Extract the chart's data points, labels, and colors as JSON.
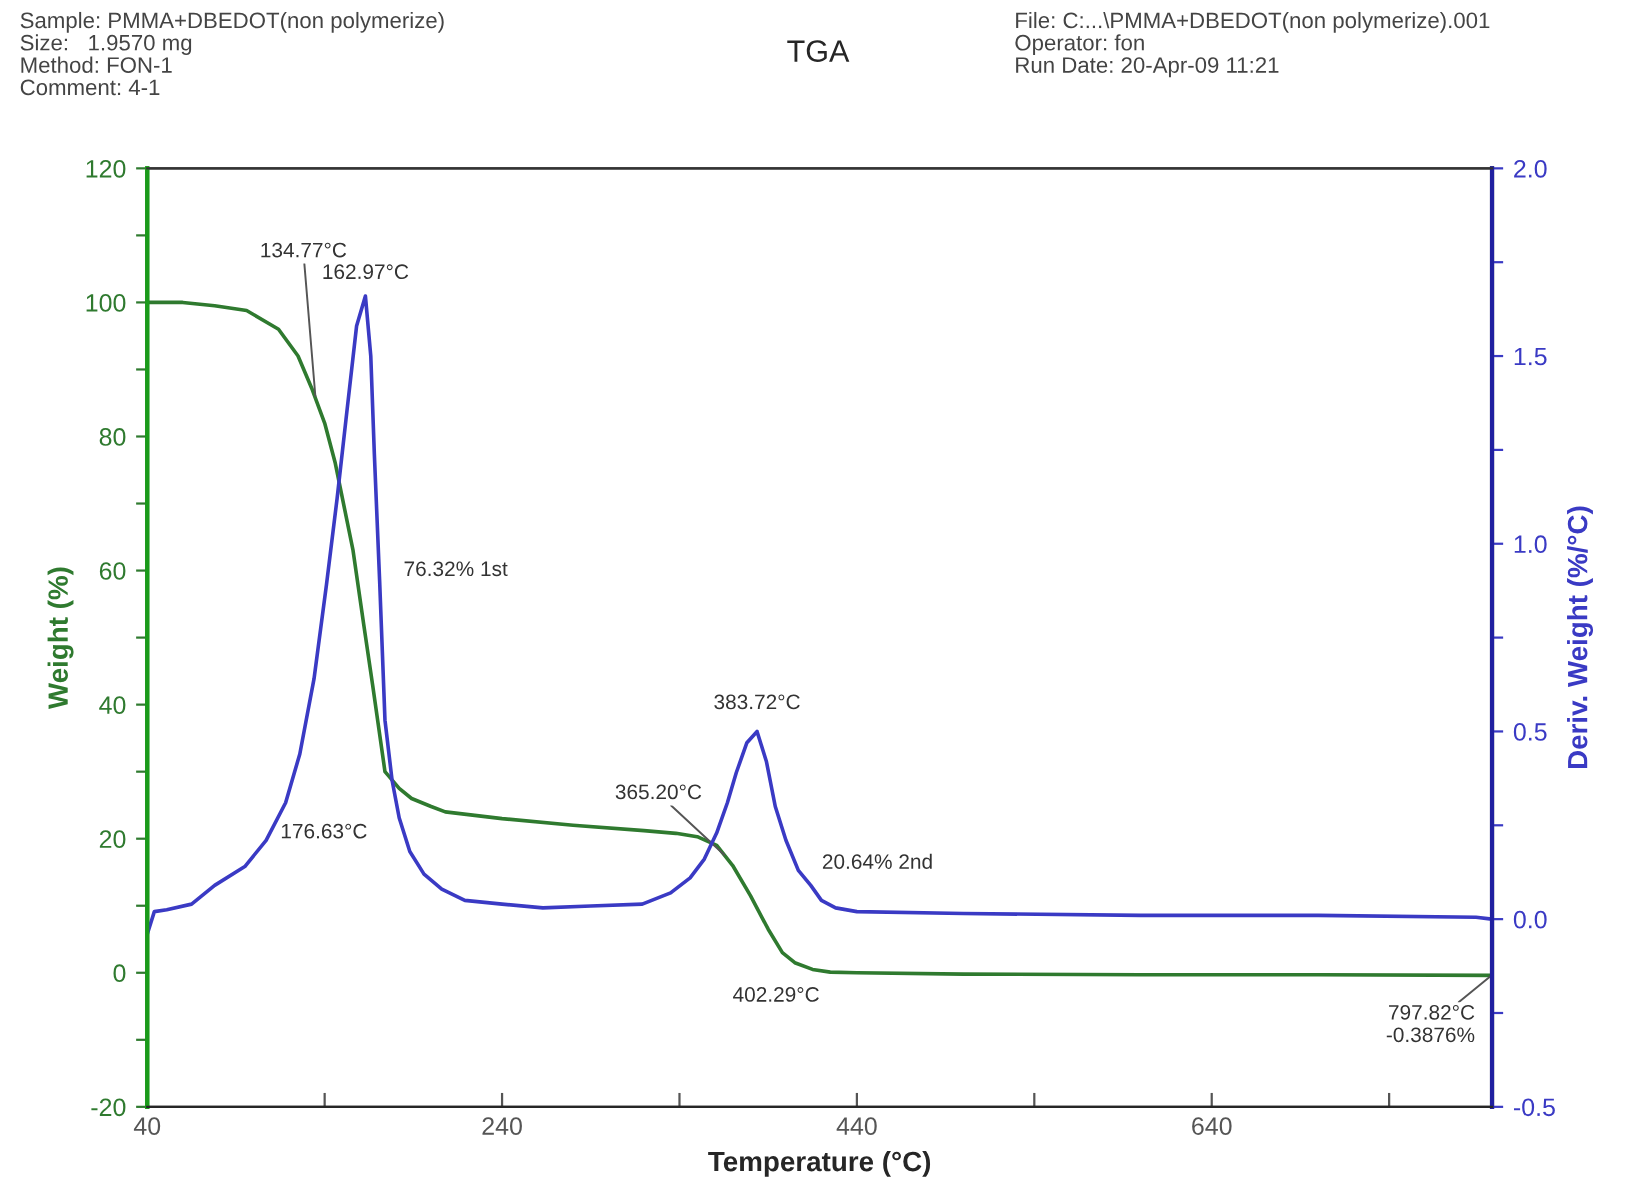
{
  "chart_data": {
    "type": "line",
    "title": "TGA",
    "xlabel": "Temperature (°C)",
    "ylabel": "Weight (%)",
    "y2label": "Deriv. Weight (%/°C)",
    "xlim": [
      40,
      798
    ],
    "xticks": [
      40,
      {
        "value": 140,
        "label": null
      },
      240,
      {
        "value": 340,
        "label": null
      },
      440,
      {
        "value": 540,
        "label": null
      },
      640,
      {
        "value": 740,
        "label": null
      }
    ],
    "ylim": [
      -20,
      120
    ],
    "yticks": [
      -20,
      {
        "value": -10,
        "label": null
      },
      0,
      {
        "value": 10,
        "label": null
      },
      20,
      {
        "value": 30,
        "label": null
      },
      40,
      {
        "value": 50,
        "label": null
      },
      60,
      {
        "value": 70,
        "label": null
      },
      80,
      {
        "value": 90,
        "label": null
      },
      100,
      {
        "value": 110,
        "label": null
      },
      120
    ],
    "y2lim": [
      -0.5,
      2.0
    ],
    "y2ticks": [
      -0.5,
      {
        "value": -0.25,
        "label": null
      },
      {
        "value": 0,
        "label": "0.0"
      },
      {
        "value": 0.25,
        "label": null
      },
      0.5,
      {
        "value": 0.75,
        "label": null
      },
      {
        "value": 1,
        "label": "1.0"
      },
      {
        "value": 1.25,
        "label": null
      },
      1.5,
      {
        "value": 1.75,
        "label": null
      },
      {
        "value": 2,
        "label": "2.0"
      }
    ],
    "grid": false,
    "legend": false,
    "series": [
      {
        "color": "#2f7a2f",
        "x": [
          40,
          60,
          78,
          96,
          114,
          125,
          133,
          140,
          146,
          156,
          162,
          167,
          174,
          182,
          189,
          200,
          208,
          240,
          280,
          320,
          338,
          350,
          361,
          370,
          380,
          390,
          398,
          405,
          415,
          425,
          440,
          500,
          600,
          700,
          797.82
        ],
        "values": [
          100,
          100,
          99.5,
          98.8,
          96,
          92,
          87,
          82,
          76,
          63,
          52,
          43,
          30,
          27.5,
          26,
          24.8,
          24,
          23,
          22,
          21.2,
          20.8,
          20.3,
          19,
          16,
          11.5,
          6.5,
          3,
          1.5,
          0.5,
          0.1,
          0,
          -0.2,
          -0.3,
          -0.3,
          -0.3876
        ]
      },
      {
        "color": "#3a3ac4",
        "axis": "y2",
        "x": [
          40,
          44,
          51,
          65,
          78,
          95,
          107,
          118,
          126,
          134,
          141,
          147,
          152,
          158,
          162.97,
          166,
          168,
          171,
          174,
          178,
          182,
          188,
          196,
          206,
          219,
          240,
          263,
          290,
          319,
          335,
          346,
          354,
          361,
          367,
          372,
          378,
          383.72,
          389,
          394,
          400,
          407,
          414,
          420,
          428,
          440,
          500,
          600,
          700,
          789,
          797.82
        ],
        "values": [
          -0.04,
          0.02,
          0.025,
          0.04,
          0.09,
          0.14,
          0.21,
          0.31,
          0.44,
          0.64,
          0.89,
          1.12,
          1.33,
          1.58,
          1.66,
          1.5,
          1.24,
          0.9,
          0.53,
          0.37,
          0.27,
          0.18,
          0.12,
          0.08,
          0.05,
          0.04,
          0.03,
          0.035,
          0.04,
          0.07,
          0.11,
          0.16,
          0.23,
          0.31,
          0.39,
          0.47,
          0.5,
          0.42,
          0.3,
          0.21,
          0.13,
          0.09,
          0.05,
          0.03,
          0.02,
          0.015,
          0.01,
          0.01,
          0.005,
          0.0
        ]
      }
    ],
    "annotations": [
      "Sample: PMMA+DBEDOT(non polymerize)\nSize:   1.9570 mg\nMethod: FON-1\nComment: 4-1",
      "File: C:...\\PMMA+DBEDOT(non polymerize).001\nOperator: fon\nRun Date: 20-Apr-09 11:21",
      {
        "text": "134.77°C",
        "x": 134.77,
        "y": 86
      },
      {
        "text": "162.97°C",
        "x": 162.97,
        "y": 101
      },
      {
        "text": "76.32% 1st",
        "x": 176.63,
        "y": 60
      },
      {
        "text": "176.63°C",
        "x": 176.63,
        "y": 25
      },
      {
        "text": "383.72°C",
        "x": 383.72,
        "y": 36
      },
      {
        "text": "365.20°C",
        "x": 365.2,
        "y": 17.6
      },
      {
        "text": "20.64% 2nd",
        "x": 414,
        "y": 13
      },
      {
        "text": "402.29°C",
        "x": 402.29,
        "y": 2.3
      },
      {
        "text": "797.82°C\n-0.3876%",
        "x": 797.82,
        "y": -0.3876
      }
    ]
  }
}
